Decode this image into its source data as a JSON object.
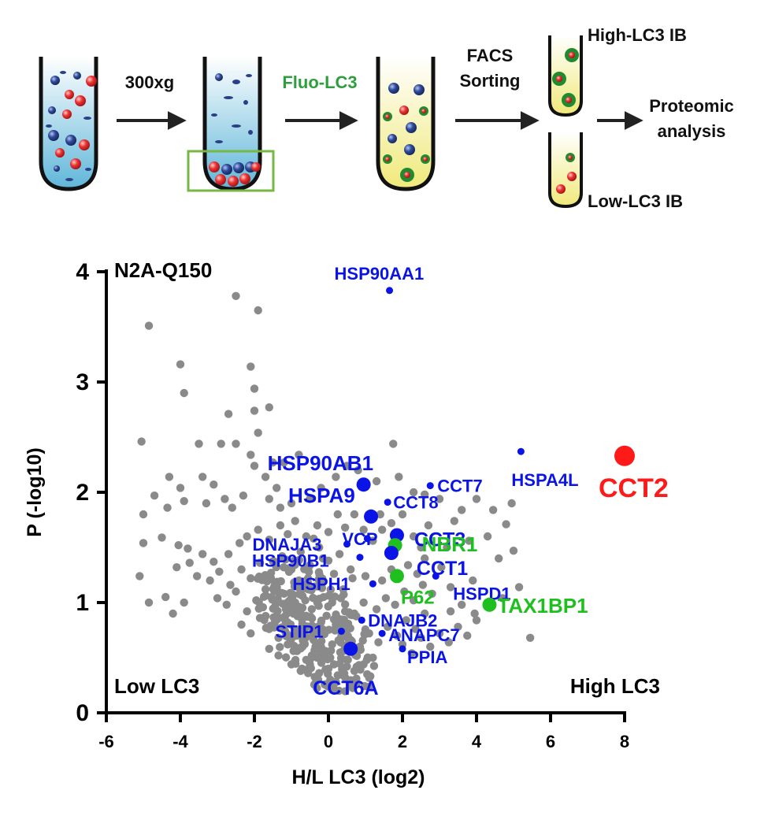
{
  "workflow": {
    "step1": "300xg",
    "step2": "Fluo-LC3",
    "step3_line1": "FACS",
    "step3_line2": "Sorting",
    "high_tube": "High-LC3 IB",
    "low_tube": "Low-LC3 IB",
    "result_line1": "Proteomic",
    "result_line2": "analysis",
    "colors": {
      "green": "#2e9e3e",
      "tube_blue": "#7fc6e0",
      "tube_yellow": "#f2ec92",
      "red_cell": "#e8282a",
      "blue_cell": "#2a3f86"
    }
  },
  "chart_data": {
    "type": "scatter",
    "title": "N2A-Q150",
    "xlabel": "H/L LC3 (log2)",
    "ylabel": "P (-log10)",
    "xlim": [
      -6,
      8
    ],
    "ylim": [
      0,
      4
    ],
    "xticks": [
      "-6",
      "-4",
      "-2",
      "0",
      "2",
      "4",
      "6",
      "8"
    ],
    "yticks": [
      "0",
      "1",
      "2",
      "3",
      "4"
    ],
    "corner_left": "Low LC3",
    "corner_right": "High LC3",
    "colors": {
      "background": "#8a8a8a",
      "chaperone": "#0a14e6",
      "autophagy": "#1fbf1f",
      "target": "#ff1a1a"
    },
    "highlight": [
      {
        "label": "HSP90AA1",
        "x": 1.65,
        "y": 3.83,
        "group": "chaperone",
        "size": "small"
      },
      {
        "label": "HSPA4L",
        "x": 5.2,
        "y": 2.37,
        "group": "chaperone",
        "size": "small"
      },
      {
        "label": "CCT2",
        "x": 8.0,
        "y": 2.33,
        "group": "target",
        "size": "xlarge"
      },
      {
        "label": "HSP90AB1",
        "x": 0.95,
        "y": 2.07,
        "group": "chaperone",
        "size": "large"
      },
      {
        "label": "CCT7",
        "x": 2.75,
        "y": 2.06,
        "group": "chaperone",
        "size": "small"
      },
      {
        "label": "CCT8",
        "x": 1.6,
        "y": 1.91,
        "group": "chaperone",
        "size": "small"
      },
      {
        "label": "HSPA9",
        "x": 1.15,
        "y": 1.78,
        "group": "chaperone",
        "size": "large"
      },
      {
        "label": "CCT3",
        "x": 1.85,
        "y": 1.61,
        "group": "chaperone",
        "size": "large"
      },
      {
        "label": "VCP",
        "x": 1.05,
        "y": 1.58,
        "group": "chaperone",
        "size": "small"
      },
      {
        "label": "DNAJA3",
        "x": 0.5,
        "y": 1.53,
        "group": "chaperone",
        "size": "small"
      },
      {
        "label": "NBR1",
        "x": 1.8,
        "y": 1.52,
        "group": "autophagy",
        "size": "large"
      },
      {
        "label": "CCT1",
        "x": 1.7,
        "y": 1.45,
        "group": "chaperone",
        "size": "large"
      },
      {
        "label": "HSP90B1",
        "x": 0.85,
        "y": 1.41,
        "group": "chaperone",
        "size": "small"
      },
      {
        "label": "HSPD1",
        "x": 2.9,
        "y": 1.24,
        "group": "chaperone",
        "size": "small"
      },
      {
        "label": "P62",
        "x": 1.85,
        "y": 1.24,
        "group": "autophagy",
        "size": "large"
      },
      {
        "label": "HSPH1",
        "x": 1.2,
        "y": 1.17,
        "group": "chaperone",
        "size": "small"
      },
      {
        "label": "TAX1BP1",
        "x": 4.35,
        "y": 0.98,
        "group": "autophagy",
        "size": "large"
      },
      {
        "label": "DNAJB2",
        "x": 0.9,
        "y": 0.84,
        "group": "chaperone",
        "size": "small"
      },
      {
        "label": "STIP1",
        "x": 0.35,
        "y": 0.74,
        "group": "chaperone",
        "size": "small"
      },
      {
        "label": "ANAPC7",
        "x": 1.45,
        "y": 0.72,
        "group": "chaperone",
        "size": "small"
      },
      {
        "label": "PPIA",
        "x": 2.0,
        "y": 0.58,
        "group": "chaperone",
        "size": "small"
      },
      {
        "label": "CCT6A",
        "x": 0.6,
        "y": 0.58,
        "group": "chaperone",
        "size": "large"
      }
    ],
    "background_points": [
      [
        -2.5,
        3.78
      ],
      [
        -1.9,
        3.65
      ],
      [
        -4.85,
        3.51
      ],
      [
        -4.0,
        3.16
      ],
      [
        -2.1,
        3.14
      ],
      [
        -3.9,
        2.9
      ],
      [
        -2.0,
        2.94
      ],
      [
        -1.6,
        2.77
      ],
      [
        -2.0,
        2.74
      ],
      [
        -2.7,
        2.71
      ],
      [
        -1.9,
        2.54
      ],
      [
        -3.5,
        2.44
      ],
      [
        -2.9,
        2.44
      ],
      [
        -2.5,
        2.44
      ],
      [
        -2.1,
        2.34
      ],
      [
        -2.0,
        2.24
      ],
      [
        -1.5,
        2.27
      ],
      [
        -1.2,
        2.27
      ],
      [
        -0.8,
        2.34
      ],
      [
        -1.7,
        2.14
      ],
      [
        -1.4,
        2.04
      ],
      [
        -4.3,
        2.14
      ],
      [
        -4.7,
        1.97
      ],
      [
        -5.05,
        2.46
      ],
      [
        -4.0,
        2.04
      ],
      [
        -3.4,
        2.14
      ],
      [
        -3.1,
        2.07
      ],
      [
        -2.8,
        1.94
      ],
      [
        -2.3,
        1.97
      ],
      [
        -5.0,
        1.8
      ],
      [
        -4.35,
        1.86
      ],
      [
        -3.9,
        1.92
      ],
      [
        -3.3,
        1.9
      ],
      [
        -2.6,
        1.86
      ],
      [
        -1.6,
        1.94
      ],
      [
        -1.3,
        1.86
      ],
      [
        -1.0,
        1.9
      ],
      [
        -0.5,
        1.94
      ],
      [
        -0.2,
        2.04
      ],
      [
        0.2,
        2.14
      ],
      [
        0.5,
        2.24
      ],
      [
        0.8,
        2.2
      ],
      [
        1.3,
        2.1
      ],
      [
        1.75,
        2.44
      ],
      [
        1.9,
        2.14
      ],
      [
        2.3,
        2.0
      ],
      [
        2.6,
        1.98
      ],
      [
        3.0,
        1.94
      ],
      [
        3.4,
        1.74
      ],
      [
        3.6,
        1.84
      ],
      [
        4.0,
        1.94
      ],
      [
        4.45,
        1.84
      ],
      [
        4.95,
        1.9
      ],
      [
        4.8,
        1.71
      ],
      [
        5.0,
        1.47
      ],
      [
        5.15,
        1.14
      ],
      [
        5.45,
        0.68
      ],
      [
        4.0,
        0.84
      ],
      [
        3.6,
        0.98
      ],
      [
        3.3,
        1.14
      ],
      [
        2.6,
        1.4
      ],
      [
        2.3,
        1.6
      ],
      [
        2.0,
        1.8
      ],
      [
        -5.0,
        1.54
      ],
      [
        -4.5,
        1.59
      ],
      [
        -4.05,
        1.52
      ],
      [
        -3.8,
        1.49
      ],
      [
        -3.4,
        1.44
      ],
      [
        -3.1,
        1.37
      ],
      [
        -2.7,
        1.44
      ],
      [
        -2.4,
        1.54
      ],
      [
        -2.2,
        1.6
      ],
      [
        -1.9,
        1.66
      ],
      [
        -1.6,
        1.57
      ],
      [
        -1.3,
        1.7
      ],
      [
        -1.1,
        1.62
      ],
      [
        -0.9,
        1.74
      ],
      [
        -0.6,
        1.6
      ],
      [
        -0.3,
        1.7
      ],
      [
        0.0,
        1.64
      ],
      [
        0.25,
        1.8
      ],
      [
        -4.1,
        1.32
      ],
      [
        -3.75,
        1.36
      ],
      [
        -3.55,
        1.24
      ],
      [
        -3.2,
        1.2
      ],
      [
        -2.95,
        1.28
      ],
      [
        -2.65,
        1.16
      ],
      [
        -2.35,
        1.3
      ],
      [
        -2.1,
        1.22
      ],
      [
        -1.85,
        1.36
      ],
      [
        -1.55,
        1.27
      ],
      [
        -1.25,
        1.42
      ],
      [
        -1.0,
        1.3
      ],
      [
        -0.75,
        1.46
      ],
      [
        -0.5,
        1.34
      ],
      [
        -0.25,
        1.5
      ],
      [
        0.0,
        1.38
      ],
      [
        0.3,
        1.44
      ],
      [
        0.6,
        1.3
      ],
      [
        -5.1,
        1.24
      ],
      [
        -4.4,
        1.05
      ],
      [
        -4.2,
        0.9
      ],
      [
        -3.9,
        1.0
      ],
      [
        -4.85,
        1.0
      ],
      [
        -3.0,
        1.04
      ],
      [
        -2.75,
        0.98
      ],
      [
        -2.5,
        1.1
      ],
      [
        -2.2,
        0.92
      ],
      [
        -1.95,
        1.02
      ],
      [
        -1.7,
        1.12
      ],
      [
        -1.45,
        0.96
      ],
      [
        -1.2,
        1.08
      ],
      [
        -0.95,
        0.9
      ],
      [
        -0.7,
        1.06
      ],
      [
        -0.45,
        0.94
      ],
      [
        -0.2,
        1.18
      ],
      [
        0.1,
        1.0
      ],
      [
        -2.35,
        0.8
      ],
      [
        -2.1,
        0.72
      ],
      [
        -1.85,
        0.86
      ],
      [
        -1.6,
        0.76
      ],
      [
        -1.35,
        0.68
      ],
      [
        -1.1,
        0.82
      ],
      [
        -0.85,
        0.7
      ],
      [
        -0.6,
        0.88
      ],
      [
        -0.35,
        0.76
      ],
      [
        -1.6,
        0.58
      ],
      [
        -1.35,
        0.52
      ],
      [
        -1.1,
        0.62
      ],
      [
        -0.85,
        0.56
      ],
      [
        -0.6,
        0.48
      ],
      [
        -0.35,
        0.6
      ],
      [
        -0.1,
        0.52
      ],
      [
        0.15,
        0.44
      ],
      [
        0.4,
        0.56
      ],
      [
        -1.0,
        0.44
      ],
      [
        -0.75,
        0.38
      ],
      [
        -0.5,
        0.44
      ],
      [
        -0.25,
        0.36
      ],
      [
        0.0,
        0.4
      ],
      [
        0.25,
        0.34
      ],
      [
        0.5,
        0.42
      ],
      [
        -0.2,
        0.5
      ],
      [
        0.05,
        0.3
      ],
      [
        -0.55,
        0.36
      ],
      [
        -0.3,
        0.3
      ],
      [
        -0.05,
        0.26
      ],
      [
        0.2,
        0.28
      ],
      [
        0.45,
        0.32
      ],
      [
        0.7,
        0.38
      ],
      [
        0.95,
        0.44
      ],
      [
        1.2,
        0.5
      ],
      [
        0.1,
        0.22
      ],
      [
        0.6,
        0.66
      ],
      [
        0.85,
        0.6
      ],
      [
        1.1,
        0.72
      ],
      [
        1.35,
        0.64
      ],
      [
        1.6,
        0.78
      ],
      [
        1.85,
        0.7
      ],
      [
        2.1,
        0.84
      ],
      [
        2.35,
        0.76
      ],
      [
        2.6,
        0.9
      ],
      [
        0.7,
        0.9
      ],
      [
        0.95,
        1.0
      ],
      [
        1.3,
        0.94
      ],
      [
        1.55,
        1.04
      ],
      [
        1.8,
        0.98
      ],
      [
        2.05,
        1.1
      ],
      [
        2.3,
        1.02
      ],
      [
        2.55,
        1.16
      ],
      [
        2.8,
        1.08
      ],
      [
        0.4,
        1.12
      ],
      [
        0.65,
        1.22
      ],
      [
        1.0,
        1.24
      ],
      [
        1.45,
        1.2
      ],
      [
        1.7,
        1.3
      ],
      [
        2.15,
        1.34
      ],
      [
        2.4,
        1.26
      ],
      [
        3.05,
        1.32
      ],
      [
        3.3,
        0.92
      ],
      [
        2.0,
        0.62
      ],
      [
        2.25,
        0.54
      ],
      [
        2.5,
        0.68
      ],
      [
        2.75,
        0.6
      ],
      [
        3.0,
        0.72
      ],
      [
        3.25,
        0.64
      ],
      [
        3.5,
        0.78
      ],
      [
        3.75,
        0.7
      ],
      [
        3.95,
        0.9
      ],
      [
        -0.4,
        1.58
      ],
      [
        -0.15,
        1.4
      ],
      [
        0.15,
        1.26
      ],
      [
        0.45,
        1.68
      ],
      [
        0.7,
        1.8
      ],
      [
        0.95,
        1.66
      ],
      [
        1.2,
        1.56
      ],
      [
        1.45,
        1.66
      ],
      [
        2.5,
        1.5
      ],
      [
        -0.8,
        1.2
      ],
      [
        -0.55,
        1.12
      ],
      [
        -0.3,
        1.0
      ],
      [
        -0.05,
        0.88
      ],
      [
        0.2,
        0.8
      ],
      [
        0.45,
        0.92
      ],
      [
        -1.4,
        0.88
      ],
      [
        -1.15,
        0.94
      ],
      [
        -0.9,
        1.0
      ],
      [
        -0.65,
        0.78
      ],
      [
        -0.4,
        0.66
      ],
      [
        -0.15,
        0.72
      ],
      [
        0.1,
        0.62
      ],
      [
        0.35,
        0.7
      ],
      [
        -0.7,
        0.6
      ],
      [
        -0.45,
        0.52
      ],
      [
        -0.2,
        0.6
      ],
      [
        0.05,
        0.5
      ],
      [
        1.4,
        1.8
      ],
      [
        1.7,
        1.72
      ],
      [
        2.7,
        1.7
      ],
      [
        3.2,
        1.5
      ],
      [
        3.8,
        1.56
      ],
      [
        4.3,
        1.6
      ],
      [
        4.6,
        1.4
      ],
      [
        3.9,
        1.2
      ],
      [
        4.7,
        1.04
      ]
    ]
  }
}
